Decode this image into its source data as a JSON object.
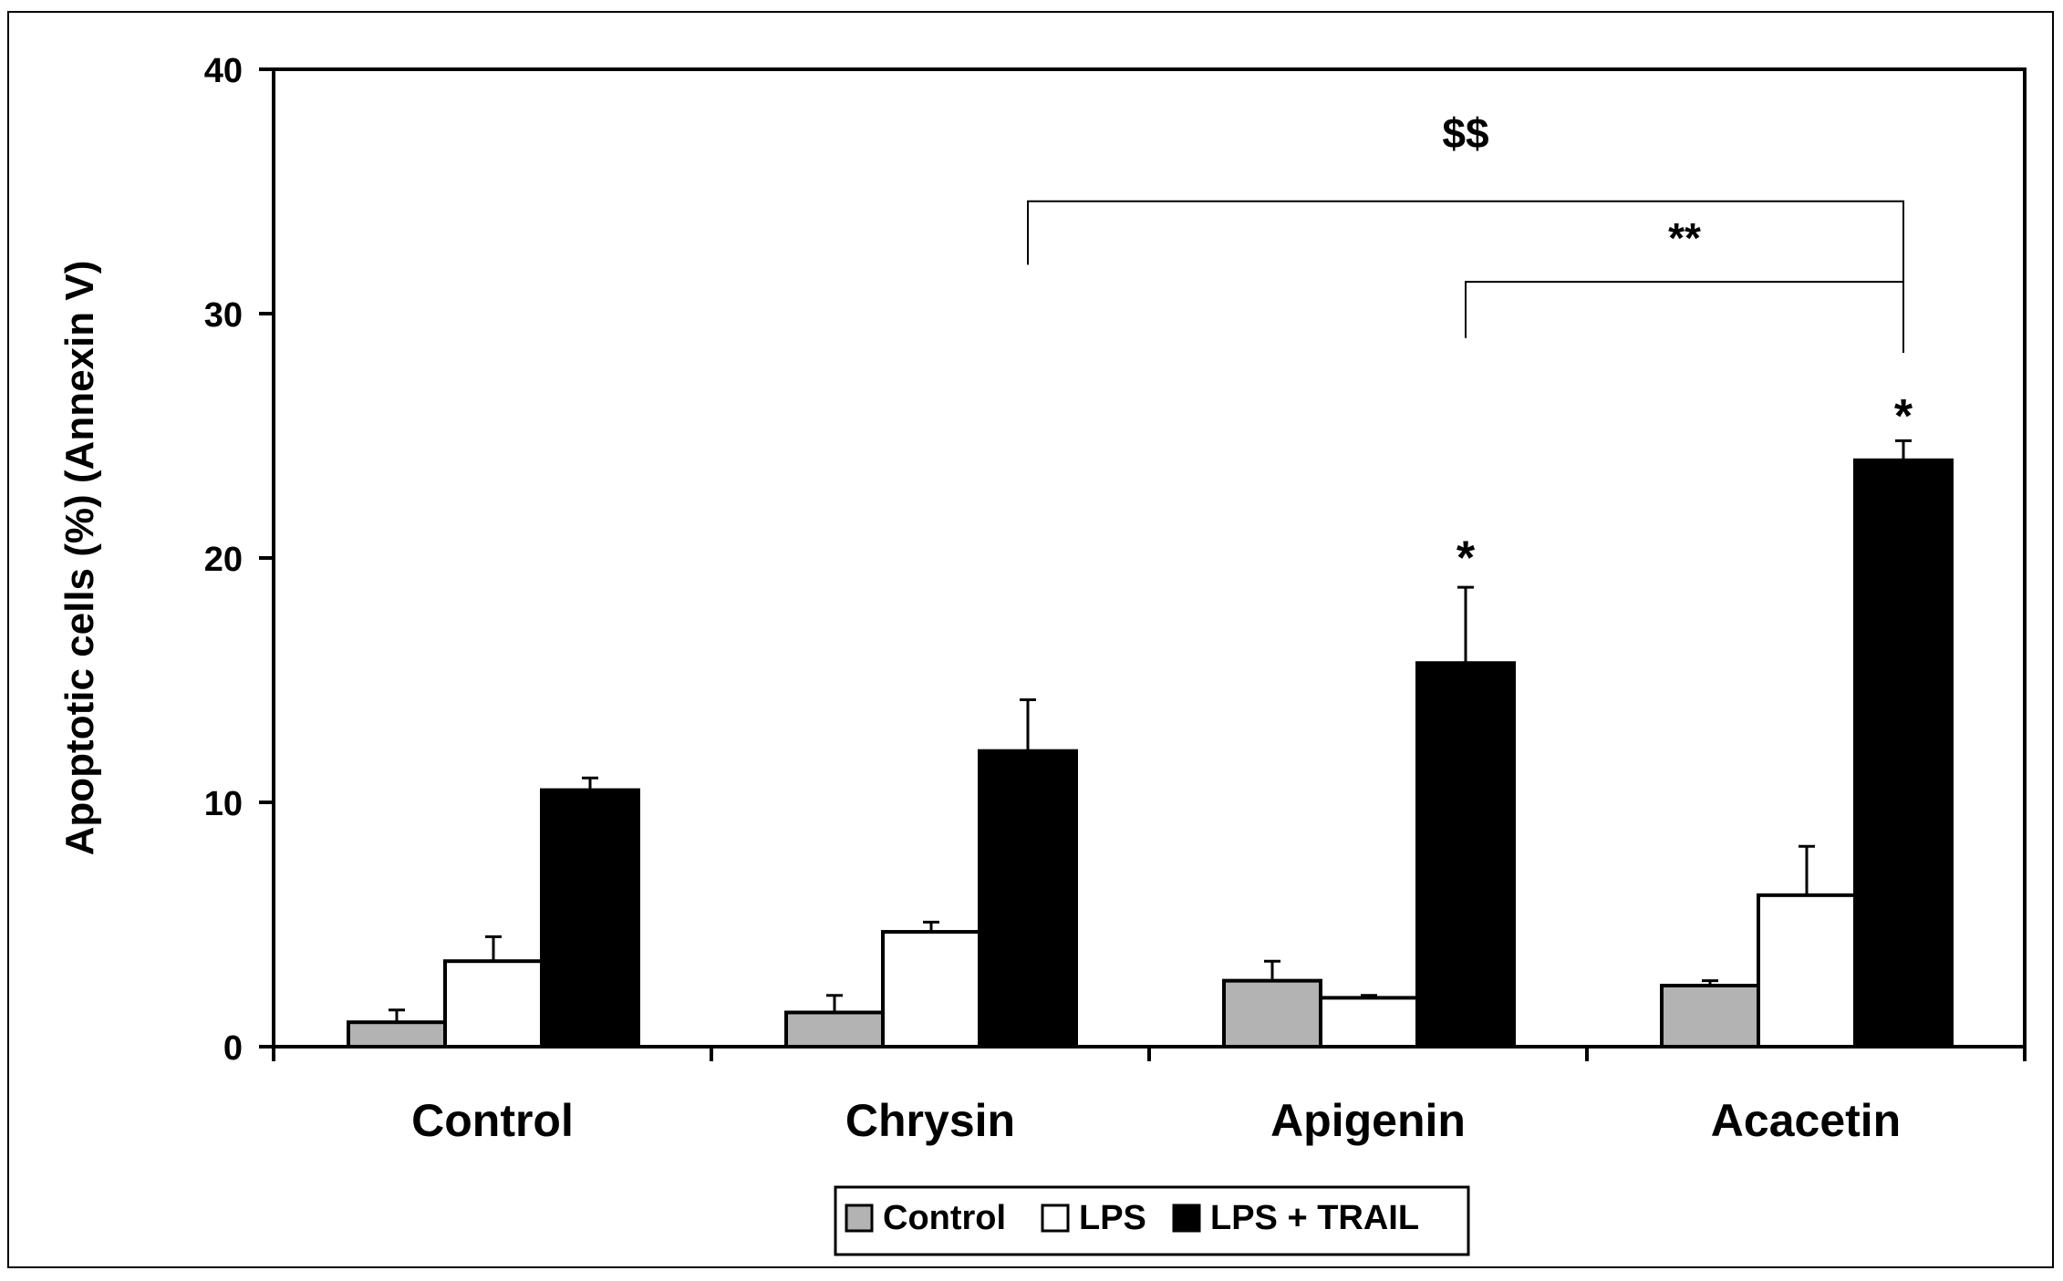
{
  "chart_data": {
    "type": "bar",
    "title": "",
    "xlabel": "",
    "ylabel": "Apoptotic cells (%) (Annexin V)",
    "ylim": [
      0,
      40
    ],
    "yticks": [
      0,
      10,
      20,
      30,
      40
    ],
    "grid": false,
    "legend_position": "bottom-center",
    "categories": [
      "Control",
      "Chrysin",
      "Apigenin",
      "Acacetin"
    ],
    "series": [
      {
        "name": "Control",
        "color": "#b3b3b3",
        "values": [
          1.0,
          1.4,
          2.7,
          2.5
        ],
        "errors": [
          0.5,
          0.7,
          0.8,
          0.2
        ]
      },
      {
        "name": "LPS",
        "color": "#ffffff",
        "values": [
          3.5,
          4.7,
          2.0,
          6.2
        ],
        "errors": [
          1.0,
          0.4,
          0.1,
          2.0
        ]
      },
      {
        "name": "LPS + TRAIL",
        "color": "#000000",
        "values": [
          10.5,
          12.1,
          15.7,
          24.0
        ],
        "errors": [
          0.5,
          2.1,
          3.1,
          0.8
        ]
      }
    ],
    "annotations": [
      {
        "text": "*",
        "category": "Apigenin",
        "series": "LPS + TRAIL",
        "y": 20.4
      },
      {
        "text": "*",
        "category": "Acacetin",
        "series": "LPS + TRAIL",
        "y": 26.2
      },
      {
        "text": "**",
        "from": "Apigenin",
        "to": "Acacetin",
        "bracket_y": 31.3,
        "drop_from": 29.0,
        "drop_to": 28.4,
        "label_y": 32.5
      },
      {
        "text": "$$",
        "from": "Chrysin",
        "to": "Acacetin",
        "bracket_y": 34.6,
        "drop_from": 32.0,
        "drop_to": 28.4,
        "label_y": 36.8
      }
    ]
  }
}
